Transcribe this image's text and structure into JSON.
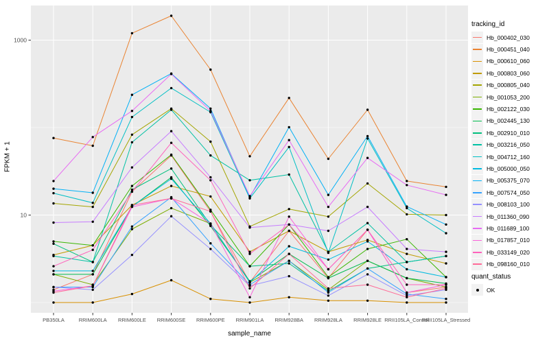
{
  "panel": {
    "bg_color": "#EBEBEB",
    "grid_color": "#FFFFFF",
    "axis_text_color": "#4D4D4D",
    "tick_color": "#333333"
  },
  "chart_data": {
    "type": "line",
    "title": "",
    "xlabel": "sample_name",
    "ylabel": "FPKM + 1",
    "y_scale": "log10",
    "ylim": [
      1,
      2500
    ],
    "y_major_ticks": [
      1000,
      10
    ],
    "y_minor_gridlines": [
      100,
      1
    ],
    "grid": "on",
    "legend_position": "right",
    "legend_title": "tracking_id",
    "point_legend": {
      "title": "quant_status",
      "entries": [
        {
          "label": "OK",
          "symbol": "point",
          "color": "#000000"
        }
      ]
    },
    "x_categories": [
      "PB350LA",
      "RRIM600LA",
      "RRIM600LE",
      "RRIM600SE",
      "RRIM600PE",
      "RRIM901LA",
      "RRIM928BA",
      "RRIM928LA",
      "RRIM928LE",
      "RRII105LA_Control",
      "RRII105LA_Stressed"
    ],
    "series": [
      {
        "name": "Hb_000402_030",
        "color": "#F8766D",
        "values": [
          1.4,
          2.1,
          18.5,
          48,
          11,
          1.7,
          6.6,
          1.9,
          6.8,
          1.3,
          1.5
        ]
      },
      {
        "name": "Hb_000451_040",
        "color": "#EA8331",
        "values": [
          76,
          62,
          1200,
          1900,
          460,
          47,
          218,
          44,
          160,
          24.5,
          21
        ]
      },
      {
        "name": "Hb_000610_060",
        "color": "#D89000",
        "values": [
          1.0,
          1.0,
          1.25,
          1.8,
          1.1,
          1.0,
          1.15,
          1.05,
          1.05,
          1.0,
          1.0
        ]
      },
      {
        "name": "Hb_000803_060",
        "color": "#C09B00",
        "values": [
          3.5,
          4.5,
          13,
          21.5,
          16.3,
          3.8,
          6.6,
          3.8,
          5.2,
          3.6,
          2.8
        ]
      },
      {
        "name": "Hb_000805_040",
        "color": "#A3A500",
        "values": [
          13.6,
          12.4,
          83,
          165,
          69,
          7.4,
          11.7,
          9.6,
          23,
          10.2,
          10
        ]
      },
      {
        "name": "Hb_001053_200",
        "color": "#7CAE00",
        "values": [
          2.1,
          1.6,
          6.9,
          12,
          8,
          1.7,
          3.0,
          1.4,
          3.0,
          1.9,
          1.5
        ]
      },
      {
        "name": "Hb_002122_030",
        "color": "#39B600",
        "values": [
          5.0,
          4.5,
          21.5,
          49,
          11.5,
          2.6,
          7.8,
          1.95,
          4.1,
          5.3,
          1.95
        ]
      },
      {
        "name": "Hb_002445_130",
        "color": "#00BB4E",
        "values": [
          2.1,
          2.1,
          12.5,
          27,
          7.5,
          1.75,
          3.6,
          1.9,
          3.0,
          1.9,
          1.65
        ]
      },
      {
        "name": "Hb_002910_010",
        "color": "#00BF7D",
        "values": [
          4.7,
          2.9,
          19.5,
          34,
          7.7,
          2.6,
          2.8,
          1.35,
          2.45,
          2.9,
          3.4
        ]
      },
      {
        "name": "Hb_003216_050",
        "color": "#00C1A3",
        "values": [
          3.4,
          2.9,
          68,
          160,
          48,
          25,
          29,
          3.8,
          8.1,
          2.9,
          3.4
        ]
      },
      {
        "name": "Hb_004712_160",
        "color": "#00BFC4",
        "values": [
          17.8,
          13.8,
          132,
          283,
          150,
          15.5,
          60,
          3.7,
          75,
          12,
          6.2
        ]
      },
      {
        "name": "Hb_005000_050",
        "color": "#00BAE0",
        "values": [
          2.3,
          2.3,
          12.5,
          26,
          8,
          1.7,
          4.4,
          3.1,
          5.0,
          2.4,
          1.95
        ]
      },
      {
        "name": "Hb_005375_070",
        "color": "#00B0F6",
        "values": [
          20,
          18,
          237,
          415,
          165,
          16,
          101,
          17,
          80,
          12.5,
          7.8
        ]
      },
      {
        "name": "Hb_007574_050",
        "color": "#35A2FF",
        "values": [
          1.5,
          1.5,
          7.4,
          16,
          4.75,
          1.6,
          3.0,
          1.3,
          2.45,
          1.25,
          1.1
        ]
      },
      {
        "name": "Hb_008103_100",
        "color": "#9590FF",
        "values": [
          1.5,
          1.4,
          3.5,
          9.7,
          4.1,
          1.55,
          2.0,
          1.2,
          2.1,
          1.2,
          1.4
        ]
      },
      {
        "name": "Hb_011360_090",
        "color": "#C77CFF",
        "values": [
          8.2,
          8.4,
          35,
          91,
          27,
          7.2,
          7.8,
          6.6,
          12.4,
          4.1,
          3.8
        ]
      },
      {
        "name": "Hb_011689_100",
        "color": "#E76BF3",
        "values": [
          24.5,
          78,
          155,
          410,
          155,
          16.5,
          72,
          12.4,
          45,
          22,
          17
        ]
      },
      {
        "name": "Hb_017857_010",
        "color": "#FA62DB",
        "values": [
          1.35,
          1.55,
          12.4,
          15.5,
          8,
          1.15,
          9.6,
          2.4,
          6.8,
          1.3,
          1.6
        ]
      },
      {
        "name": "Hb_033149_020",
        "color": "#FF62BC",
        "values": [
          2.6,
          4.0,
          18.5,
          67,
          25,
          3.6,
          7.8,
          2.4,
          6.8,
          1.6,
          1.6
        ]
      },
      {
        "name": "Hb_098160_010",
        "color": "#FF6A98",
        "values": [
          1.3,
          1.55,
          13,
          15.5,
          11,
          1.45,
          3.6,
          1.45,
          1.6,
          1.15,
          1.45
        ]
      }
    ]
  }
}
